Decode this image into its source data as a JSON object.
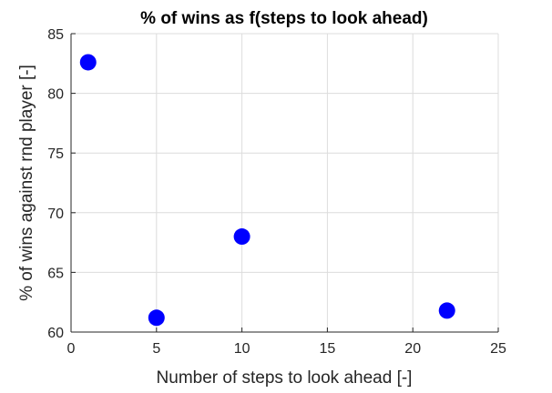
{
  "chart_data": {
    "type": "scatter",
    "title": "% of wins as f(steps to look ahead)",
    "xlabel": "Number of steps to look ahead [-]",
    "ylabel": "% of wins against rnd player [-]",
    "xlim": [
      0,
      25
    ],
    "ylim": [
      60,
      85
    ],
    "xticks": [
      0,
      5,
      10,
      15,
      20,
      25
    ],
    "yticks": [
      60,
      65,
      70,
      75,
      80,
      85
    ],
    "grid": true,
    "marker_color": "#0000ff",
    "series": [
      {
        "points": [
          {
            "x": 1,
            "y": 82.6
          },
          {
            "x": 5,
            "y": 61.2
          },
          {
            "x": 10,
            "y": 68.0
          },
          {
            "x": 22,
            "y": 61.8
          }
        ]
      }
    ]
  }
}
